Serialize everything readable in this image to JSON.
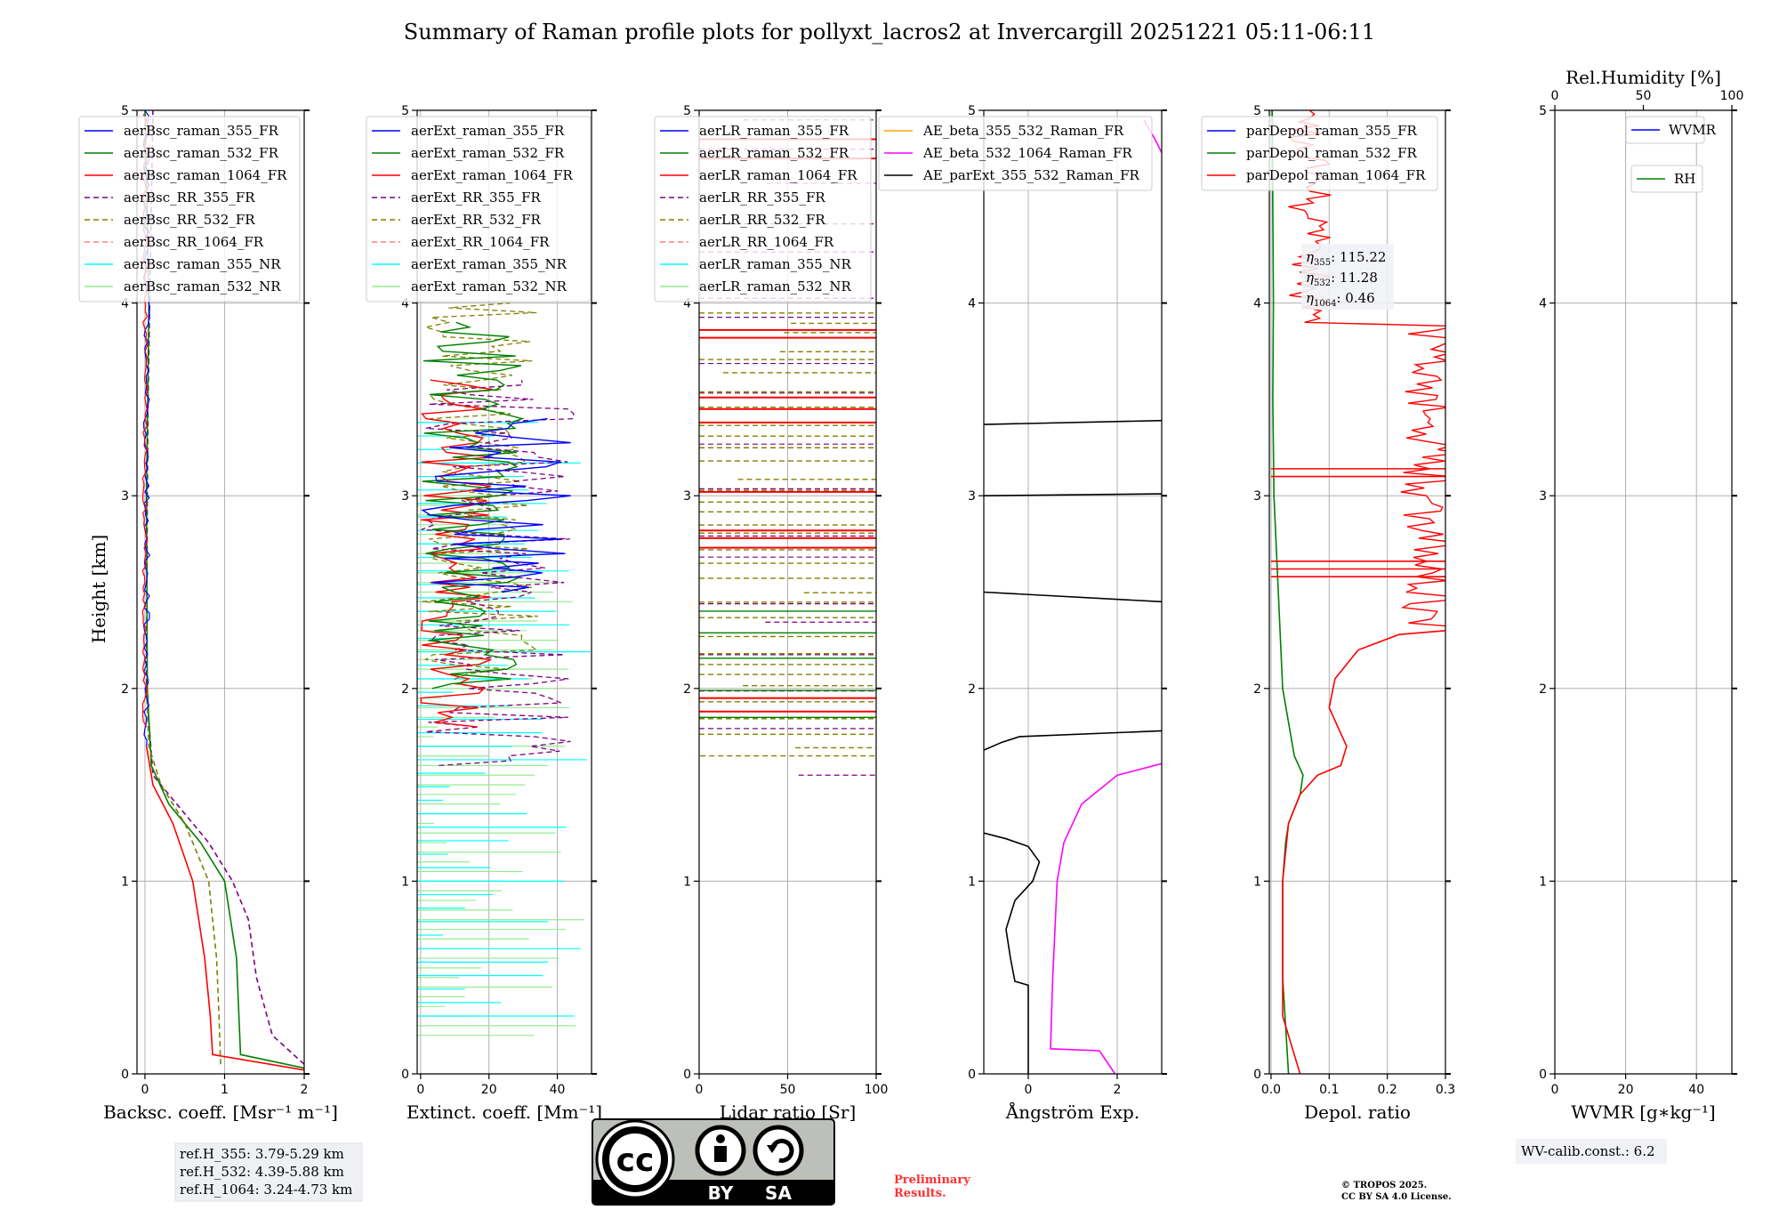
{
  "title": "Summary of Raman profile plots for pollyxt_lacros2 at Invercargill 20251221 05:11-06:11",
  "ylabel": "Height [km]",
  "colors": {
    "blue": "#0000ff",
    "green": "#008000",
    "red": "#ff0000",
    "purple": "#800080",
    "olive": "#808000",
    "salmon": "#fa8072",
    "cyan": "#00ffff",
    "lightgreen": "#90ee90",
    "magenta": "#ff00ff",
    "orange": "#ffa500",
    "black": "#000000",
    "grid": "#b0b0b0"
  },
  "chart_data": [
    {
      "type": "line",
      "panel": "backscatter",
      "xlabel": "Backsc. coeff. [Msr⁻¹ m⁻¹]",
      "xlim": [
        -0.1,
        2
      ],
      "ylim": [
        0,
        5
      ],
      "xticks": [
        "0",
        "1",
        "2"
      ],
      "xtick_values": [
        0,
        1,
        2
      ],
      "yticks": [
        "0",
        "1",
        "2",
        "3",
        "4",
        "5"
      ],
      "legend": [
        {
          "label": "aerBsc_raman_355_FR",
          "color": "blue",
          "dash": false
        },
        {
          "label": "aerBsc_raman_532_FR",
          "color": "green",
          "dash": false
        },
        {
          "label": "aerBsc_raman_1064_FR",
          "color": "red",
          "dash": false
        },
        {
          "label": "aerBsc_RR_355_FR",
          "color": "purple",
          "dash": true
        },
        {
          "label": "aerBsc_RR_532_FR",
          "color": "olive",
          "dash": true
        },
        {
          "label": "aerBsc_RR_1064_FR",
          "color": "salmon",
          "dash": true
        },
        {
          "label": "aerBsc_raman_355_NR",
          "color": "cyan",
          "dash": false
        },
        {
          "label": "aerBsc_raman_532_NR",
          "color": "lightgreen",
          "dash": false
        }
      ],
      "series": [
        {
          "name": "aerBsc_RR_355_FR",
          "color": "purple",
          "dash": true,
          "x": [
            2.0,
            1.6,
            1.4,
            1.3,
            1.1,
            0.8,
            0.4,
            0.1,
            0.02,
            0.03,
            0.04,
            0.06,
            0.1
          ],
          "y": [
            0.05,
            0.2,
            0.5,
            0.8,
            1.0,
            1.2,
            1.4,
            1.55,
            2.0,
            3.0,
            3.5,
            4.0,
            5.0
          ]
        },
        {
          "name": "aerBsc_raman_532_FR",
          "color": "green",
          "dash": false,
          "x": [
            2.0,
            1.2,
            1.18,
            1.15,
            1.0,
            0.7,
            0.3,
            0.08,
            0.03,
            0.02,
            0.05,
            0.0
          ],
          "y": [
            0.03,
            0.1,
            0.3,
            0.6,
            1.0,
            1.2,
            1.4,
            1.6,
            2.0,
            3.0,
            4.0,
            5.0
          ]
        },
        {
          "name": "aerBsc_RR_532_FR",
          "color": "olive",
          "dash": true,
          "x": [
            0.95,
            0.93,
            0.9,
            0.8,
            0.5,
            0.2,
            0.05,
            0.02
          ],
          "y": [
            0.05,
            0.3,
            0.6,
            1.0,
            1.3,
            1.5,
            1.7,
            2.0
          ]
        },
        {
          "name": "aerBsc_raman_1064_FR",
          "color": "red",
          "dash": false,
          "x": [
            2.0,
            0.85,
            0.82,
            0.75,
            0.6,
            0.35,
            0.1,
            0.02
          ],
          "y": [
            0.02,
            0.1,
            0.3,
            0.6,
            1.0,
            1.3,
            1.5,
            1.7
          ]
        }
      ],
      "annotation": [
        "ref.H_355: 3.79-5.29 km",
        "ref.H_532: 4.39-5.88 km",
        "ref.H_1064: 3.24-4.73 km"
      ]
    },
    {
      "type": "line",
      "panel": "extinction",
      "xlabel": "Extinct. coeff. [Mm⁻¹]",
      "xlim": [
        -1,
        50
      ],
      "ylim": [
        0,
        5
      ],
      "xticks": [
        "0",
        "20",
        "40"
      ],
      "xtick_values": [
        0,
        20,
        40
      ],
      "yticks": [
        "0",
        "1",
        "2",
        "3",
        "4",
        "5"
      ],
      "legend": [
        {
          "label": "aerExt_raman_355_FR",
          "color": "blue",
          "dash": false
        },
        {
          "label": "aerExt_raman_532_FR",
          "color": "green",
          "dash": false
        },
        {
          "label": "aerExt_raman_1064_FR",
          "color": "red",
          "dash": false
        },
        {
          "label": "aerExt_RR_355_FR",
          "color": "purple",
          "dash": true
        },
        {
          "label": "aerExt_RR_532_FR",
          "color": "olive",
          "dash": true
        },
        {
          "label": "aerExt_RR_1064_FR",
          "color": "salmon",
          "dash": true
        },
        {
          "label": "aerExt_raman_355_NR",
          "color": "cyan",
          "dash": false
        },
        {
          "label": "aerExt_raman_532_NR",
          "color": "lightgreen",
          "dash": false
        }
      ]
    },
    {
      "type": "line",
      "panel": "lidar_ratio",
      "xlabel": "Lidar ratio [Sr]",
      "xlim": [
        0,
        100
      ],
      "ylim": [
        0,
        5
      ],
      "xticks": [
        "0",
        "50",
        "100"
      ],
      "xtick_values": [
        0,
        50,
        100
      ],
      "yticks": [
        "0",
        "1",
        "2",
        "3",
        "4",
        "5"
      ],
      "legend": [
        {
          "label": "aerLR_raman_355_FR",
          "color": "blue",
          "dash": false
        },
        {
          "label": "aerLR_raman_532_FR",
          "color": "green",
          "dash": false
        },
        {
          "label": "aerLR_raman_1064_FR",
          "color": "red",
          "dash": false
        },
        {
          "label": "aerLR_RR_355_FR",
          "color": "purple",
          "dash": true
        },
        {
          "label": "aerLR_RR_532_FR",
          "color": "olive",
          "dash": true
        },
        {
          "label": "aerLR_RR_1064_FR",
          "color": "salmon",
          "dash": true
        },
        {
          "label": "aerLR_raman_355_NR",
          "color": "cyan",
          "dash": false
        },
        {
          "label": "aerLR_raman_532_NR",
          "color": "lightgreen",
          "dash": false
        }
      ]
    },
    {
      "type": "line",
      "panel": "angstrom",
      "xlabel": "Ångström Exp.",
      "xlim": [
        -1,
        3
      ],
      "ylim": [
        0,
        5
      ],
      "xticks": [
        "0",
        "2"
      ],
      "xtick_values": [
        0,
        2
      ],
      "yticks": [
        "0",
        "1",
        "2",
        "3",
        "4",
        "5"
      ],
      "legend": [
        {
          "label": "AE_beta_355_532_Raman_FR",
          "color": "orange",
          "dash": false
        },
        {
          "label": "AE_beta_532_1064_Raman_FR",
          "color": "magenta",
          "dash": false
        },
        {
          "label": "AE_parExt_355_532_Raman_FR",
          "color": "black",
          "dash": false
        }
      ],
      "series": [
        {
          "name": "AE_parExt_355_532_Raman_FR",
          "color": "black",
          "x": [
            0.0,
            0.0,
            -0.3,
            -0.4,
            -0.5,
            -0.3,
            0.1,
            0.25,
            0.0,
            -0.5,
            -1.0
          ],
          "y": [
            0.0,
            0.46,
            0.48,
            0.6,
            0.75,
            0.9,
            1.0,
            1.1,
            1.18,
            1.22,
            1.25
          ]
        },
        {
          "name": "AE_beta_532_1064_Raman_FR",
          "color": "magenta",
          "x": [
            1.95,
            1.6,
            0.5,
            0.55,
            0.65,
            0.8,
            1.2,
            2.0,
            3.0
          ],
          "y": [
            0.0,
            0.12,
            0.13,
            0.5,
            1.0,
            1.2,
            1.4,
            1.55,
            1.61
          ]
        }
      ]
    },
    {
      "type": "line",
      "panel": "depolarization",
      "xlabel": "Depol. ratio",
      "xlim": [
        -0.003,
        0.3
      ],
      "ylim": [
        0,
        5
      ],
      "xticks": [
        "0.0",
        "0.1",
        "0.2",
        "0.3"
      ],
      "xtick_values": [
        0.0,
        0.1,
        0.2,
        0.3
      ],
      "yticks": [
        "0",
        "1",
        "2",
        "3",
        "4",
        "5"
      ],
      "legend": [
        {
          "label": "parDepol_raman_355_FR",
          "color": "blue",
          "dash": false
        },
        {
          "label": "parDepol_raman_532_FR",
          "color": "green",
          "dash": false
        },
        {
          "label": "parDepol_raman_1064_FR",
          "color": "red",
          "dash": false
        }
      ],
      "series": [
        {
          "name": "parDepol_raman_532_FR",
          "color": "green",
          "x": [
            0.03,
            0.02,
            0.02,
            0.025,
            0.03,
            0.05,
            0.055,
            0.04,
            0.02,
            0.005,
            0.003,
            0.004,
            0.003,
            0.002
          ],
          "y": [
            0.0,
            0.5,
            1.0,
            1.2,
            1.3,
            1.45,
            1.55,
            1.65,
            2.0,
            3.0,
            3.5,
            4.0,
            4.5,
            5.0
          ]
        },
        {
          "name": "parDepol_raman_1064_FR",
          "color": "red",
          "x": [
            0.05,
            0.02,
            0.02,
            0.03,
            0.05,
            0.08,
            0.12,
            0.13,
            0.1,
            0.11,
            0.15,
            0.22,
            0.3
          ],
          "y": [
            0.0,
            0.3,
            1.0,
            1.3,
            1.45,
            1.55,
            1.6,
            1.7,
            1.9,
            2.05,
            2.2,
            2.28,
            2.3
          ]
        }
      ],
      "annotation": [
        {
          "sym": "η",
          "sub": "355",
          "value": ": 115.22"
        },
        {
          "sym": "η",
          "sub": "532",
          "value": ": 11.28"
        },
        {
          "sym": "η",
          "sub": "1064",
          "value": ": 0.46"
        }
      ]
    },
    {
      "type": "line",
      "panel": "wvmr",
      "xlabel": "WVMR [g∗kg⁻¹]",
      "xlabel_top": "Rel.Humidity [%]",
      "xlim": [
        0,
        50
      ],
      "ylim": [
        0,
        5
      ],
      "xticks": [
        "0",
        "20",
        "40"
      ],
      "xtick_values": [
        0,
        20,
        40
      ],
      "xticks_top": [
        "0",
        "50",
        "100"
      ],
      "xtick_top_values": [
        0,
        50,
        100
      ],
      "yticks": [
        "0",
        "1",
        "2",
        "3",
        "4",
        "5"
      ],
      "legend": [
        {
          "label": "WVMR",
          "color": "blue",
          "dash": false
        },
        {
          "label": "RH",
          "color": "green",
          "dash": false
        }
      ],
      "annotation": [
        "WV-calib.const.: 6.2"
      ]
    }
  ],
  "footer": {
    "license_badge": [
      "BY",
      "SA"
    ],
    "preliminary": [
      "Preliminary",
      "Results."
    ],
    "copyright": [
      "© TROPOS 2025.",
      "CC BY SA 4.0 License."
    ]
  }
}
